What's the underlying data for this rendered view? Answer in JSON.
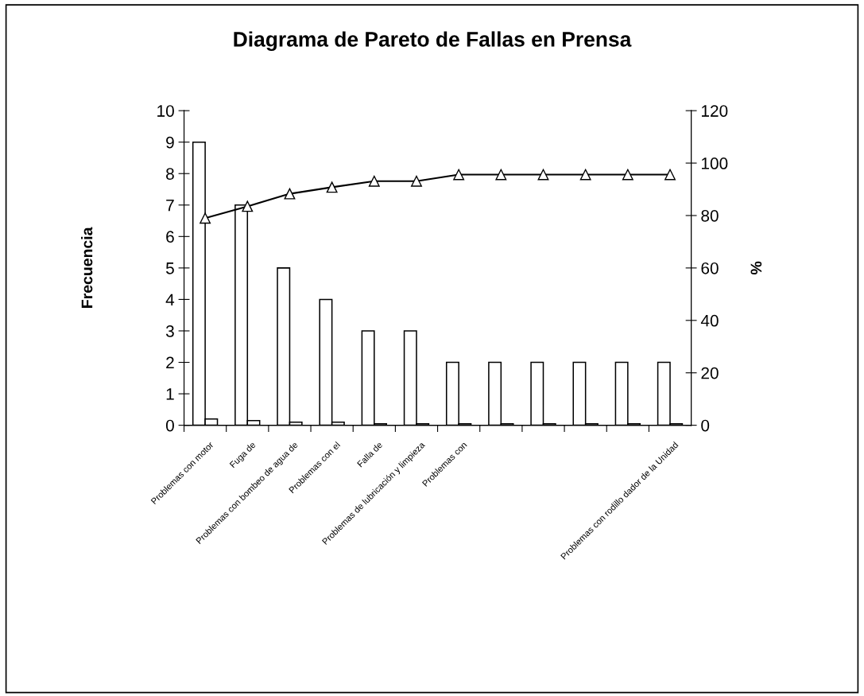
{
  "chart_data": {
    "type": "bar",
    "title": "Diagrama de Pareto de Fallas en Prensa",
    "ylabel": "Frecuencia",
    "y2label": "%",
    "categories": [
      "Problemas con motor",
      "Fuga de",
      "Problemas con bombeo de agua de",
      "Problemas con el",
      "Falla de",
      "Problemas de lubricación y limpieza",
      "Problemas con",
      null,
      null,
      null,
      null,
      "Problemas con rodillo dador de la Unidad"
    ],
    "series": [
      {
        "color": "#ffffff",
        "values": [
          9,
          7,
          5,
          4,
          3,
          3,
          2,
          2,
          2,
          2,
          2,
          2
        ]
      },
      {
        "color": "#ffffff",
        "values": [
          0.2,
          0.15,
          0.1,
          0.1,
          0.05,
          0.05,
          0.05,
          0.05,
          0.05,
          0.05,
          0.05,
          0.05
        ]
      },
      {
        "type": "line",
        "axis": "y2",
        "color": "#000000",
        "marker": "triangle",
        "values": [
          79,
          83.5,
          88.3,
          90.8,
          93.1,
          93.1,
          95.6,
          95.6,
          95.6,
          95.6,
          95.6,
          95.6
        ]
      }
    ],
    "ylim": [
      0,
      10
    ],
    "yticks": [
      0,
      1,
      2,
      3,
      4,
      5,
      6,
      7,
      8,
      9,
      10
    ],
    "y2lim": [
      0,
      120
    ],
    "y2ticks": [
      0,
      20,
      40,
      60,
      80,
      100,
      120
    ],
    "grid": false,
    "legend": false
  }
}
